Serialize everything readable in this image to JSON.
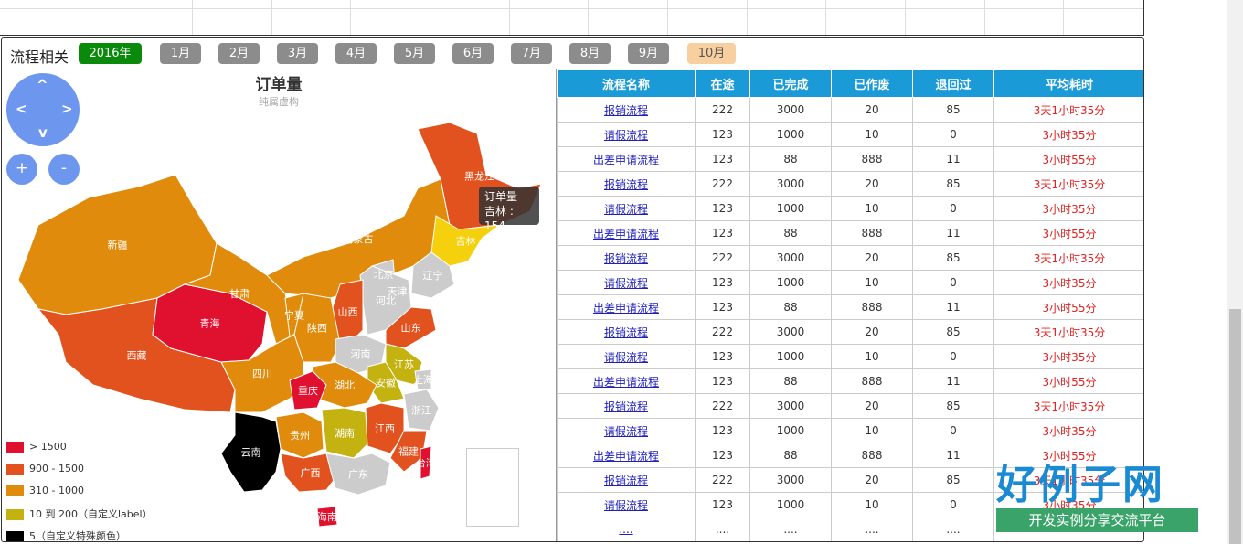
{
  "toolbar": {
    "title": "流程相关",
    "year": "2016年",
    "months": [
      "1月",
      "2月",
      "3月",
      "4月",
      "5月",
      "6月",
      "7月",
      "8月",
      "9月",
      "10月"
    ],
    "active_month": "10月"
  },
  "map": {
    "title": "订单量",
    "subtitle": "纯属虚构",
    "controls": {
      "up": "^",
      "left": "<",
      "right": ">",
      "down": "v",
      "zoom_in": "+",
      "zoom_out": "-"
    },
    "tooltip": {
      "series": "订单量",
      "label": "吉林 : 154"
    },
    "legend": [
      {
        "label": "> 1500",
        "color": "#e0102f"
      },
      {
        "label": "900 - 1500",
        "color": "#e2521f"
      },
      {
        "label": "310 - 1000",
        "color": "#e08b0b"
      },
      {
        "label": "10 到 200（自定义label）",
        "color": "#c3b20f"
      },
      {
        "label": "5（自定义特殊颜色）",
        "color": "#000000"
      }
    ],
    "provinces": [
      {
        "name": "新疆",
        "color": "#e08b0b"
      },
      {
        "name": "西藏",
        "color": "#e2521f"
      },
      {
        "name": "青海",
        "color": "#e0102f"
      },
      {
        "name": "甘肃",
        "color": "#e08b0b"
      },
      {
        "name": "内蒙古",
        "color": "#e08b0b"
      },
      {
        "name": "黑龙江",
        "color": "#e2521f"
      },
      {
        "name": "吉林",
        "color": "#f4d10c"
      },
      {
        "name": "辽宁",
        "color": "#cccccc"
      },
      {
        "name": "北京",
        "color": "#cccccc"
      },
      {
        "name": "天津",
        "color": "#cccccc"
      },
      {
        "name": "河北",
        "color": "#cccccc"
      },
      {
        "name": "山西",
        "color": "#e2521f"
      },
      {
        "name": "宁夏",
        "color": "#e08b0b"
      },
      {
        "name": "陕西",
        "color": "#e08b0b"
      },
      {
        "name": "山东",
        "color": "#e2521f"
      },
      {
        "name": "河南",
        "color": "#cccccc"
      },
      {
        "name": "江苏",
        "color": "#c3b20f"
      },
      {
        "name": "安徽",
        "color": "#c3b20f"
      },
      {
        "name": "上海",
        "color": "#cccccc"
      },
      {
        "name": "湖北",
        "color": "#e08b0b"
      },
      {
        "name": "四川",
        "color": "#e08b0b"
      },
      {
        "name": "重庆",
        "color": "#e0102f"
      },
      {
        "name": "浙江",
        "color": "#cccccc"
      },
      {
        "name": "湖南",
        "color": "#c3b20f"
      },
      {
        "name": "江西",
        "color": "#e2521f"
      },
      {
        "name": "贵州",
        "color": "#e08b0b"
      },
      {
        "name": "福建",
        "color": "#e2521f"
      },
      {
        "name": "云南",
        "color": "#000000"
      },
      {
        "name": "广西",
        "color": "#e2521f"
      },
      {
        "name": "广东",
        "color": "#cccccc"
      },
      {
        "name": "台湾",
        "color": "#e0102f"
      },
      {
        "name": "海南",
        "color": "#e0102f"
      }
    ]
  },
  "table": {
    "headers": [
      "流程名称",
      "在途",
      "已完成",
      "已作废",
      "退回过",
      "平均耗时"
    ],
    "rows": [
      [
        "报销流程",
        "222",
        "3000",
        "20",
        "85",
        "3天1小时35分"
      ],
      [
        "请假流程",
        "123",
        "1000",
        "10",
        "0",
        "3小时35分"
      ],
      [
        "出差申请流程",
        "123",
        "88",
        "888",
        "11",
        "3小时55分"
      ],
      [
        "报销流程",
        "222",
        "3000",
        "20",
        "85",
        "3天1小时35分"
      ],
      [
        "请假流程",
        "123",
        "1000",
        "10",
        "0",
        "3小时35分"
      ],
      [
        "出差申请流程",
        "123",
        "88",
        "888",
        "11",
        "3小时55分"
      ],
      [
        "报销流程",
        "222",
        "3000",
        "20",
        "85",
        "3天1小时35分"
      ],
      [
        "请假流程",
        "123",
        "1000",
        "10",
        "0",
        "3小时35分"
      ],
      [
        "出差申请流程",
        "123",
        "88",
        "888",
        "11",
        "3小时55分"
      ],
      [
        "报销流程",
        "222",
        "3000",
        "20",
        "85",
        "3天1小时35分"
      ],
      [
        "请假流程",
        "123",
        "1000",
        "10",
        "0",
        "3小时35分"
      ],
      [
        "出差申请流程",
        "123",
        "88",
        "888",
        "11",
        "3小时55分"
      ],
      [
        "报销流程",
        "222",
        "3000",
        "20",
        "85",
        "3天1小时35分"
      ],
      [
        "请假流程",
        "123",
        "1000",
        "10",
        "0",
        "3小时35分"
      ],
      [
        "出差申请流程",
        "123",
        "88",
        "888",
        "11",
        "3小时55分"
      ],
      [
        "报销流程",
        "222",
        "3000",
        "20",
        "85",
        "3天1小时35分"
      ],
      [
        "请假流程",
        "123",
        "1000",
        "10",
        "0",
        "3小时35分"
      ],
      [
        "....",
        "....",
        "....",
        "....",
        "....",
        ""
      ]
    ]
  },
  "watermark": {
    "brand": "好例子网",
    "slogan": "开发实例分享交流平台"
  }
}
